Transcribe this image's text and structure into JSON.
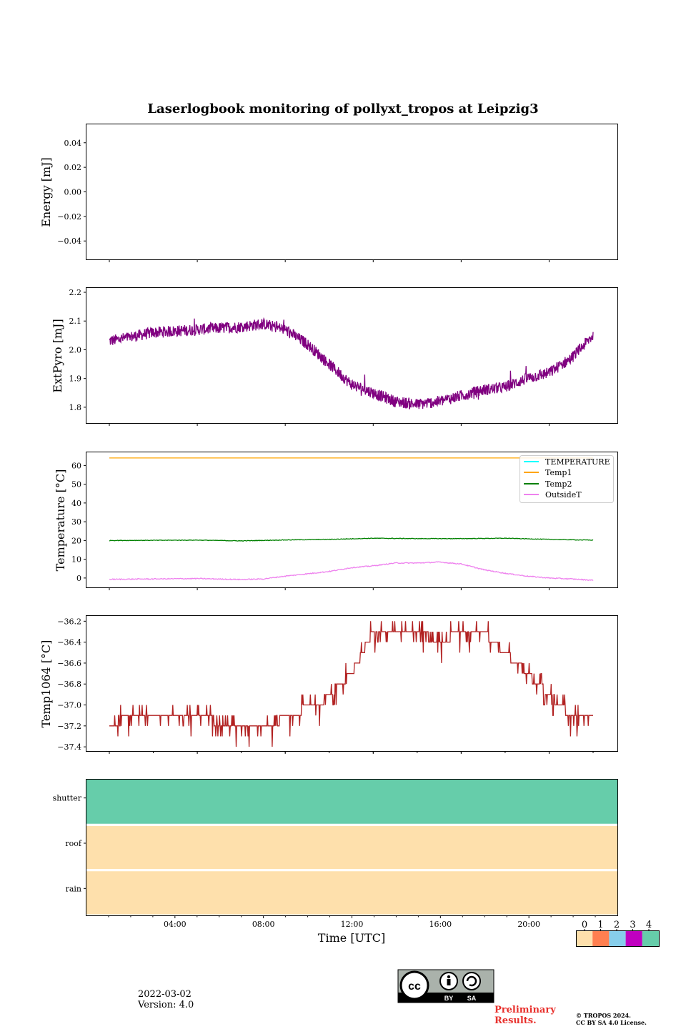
{
  "footer": {
    "date": "2022-03-02",
    "version": "Version: 4.0",
    "preliminary_line1": "Preliminary",
    "preliminary_line2": "Results.",
    "copyright_line1": "© TROPOS 2024.",
    "copyright_line2": "CC BY SA 4.0 License.",
    "license_badge": {
      "by": "BY",
      "sa": "SA",
      "cc": "cc"
    }
  },
  "colors": {
    "extpyro": "#800080",
    "temperature": "#00ffff",
    "temp1": "#ffa500",
    "temp2": "#008000",
    "outsideT": "#ee82ee",
    "temp1064": "#b22222",
    "status": [
      "#fee0ac",
      "#ff7f50",
      "#87ceeb",
      "#c000c0",
      "#66cdaa"
    ]
  },
  "chart_data": [
    {
      "type": "line",
      "title": "Laserlogbook monitoring of pollyxt_tropos at Leipzig3",
      "ylabel": "Energy [mJ]",
      "ylim": [
        -0.055,
        0.055
      ],
      "yticks": [
        0.04,
        0.02,
        0.0,
        -0.02,
        -0.04
      ],
      "ytick_labels": [
        "0.04",
        "0.02",
        "0.00",
        "−0.02",
        "−0.04"
      ],
      "series": []
    },
    {
      "type": "line",
      "ylabel": "ExtPyro [mJ]",
      "ylim": [
        1.745,
        2.215
      ],
      "yticks": [
        2.2,
        2.1,
        2.0,
        1.9,
        1.8
      ],
      "ytick_labels": [
        "2.2",
        "2.1",
        "2.0",
        "1.9",
        "1.8"
      ],
      "series": [
        {
          "name": "ExtPyro",
          "x_hours": [
            0,
            2,
            4,
            6,
            7,
            8,
            9,
            11,
            13,
            14,
            15,
            16,
            17,
            18,
            19,
            20,
            21,
            22
          ],
          "values": [
            2.03,
            2.06,
            2.07,
            2.08,
            2.09,
            2.07,
            2.02,
            1.88,
            1.82,
            1.81,
            1.82,
            1.84,
            1.86,
            1.87,
            1.9,
            1.92,
            1.97,
            2.05
          ],
          "noise_amplitude": 0.02
        }
      ]
    },
    {
      "type": "line",
      "ylabel": "Temperature [°C]",
      "ylim": [
        -5,
        67
      ],
      "yticks": [
        60,
        50,
        40,
        30,
        20,
        10,
        0
      ],
      "ytick_labels": [
        "60",
        "50",
        "40",
        "30",
        "20",
        "10",
        "0"
      ],
      "legend": [
        "TEMPERATURE",
        "Temp1",
        "Temp2",
        "OutsideT"
      ],
      "legend_position": "top-right",
      "series": [
        {
          "name": "TEMPERATURE",
          "x_hours": [],
          "values": []
        },
        {
          "name": "Temp1",
          "x_hours": [
            0,
            22
          ],
          "values": [
            64,
            64
          ]
        },
        {
          "name": "Temp2",
          "x_hours": [
            0,
            4,
            6,
            8,
            10,
            12,
            14,
            16,
            18,
            20,
            22
          ],
          "values": [
            20,
            20.2,
            19.8,
            20.3,
            20.6,
            21.2,
            21,
            21,
            21.2,
            20.6,
            20.2
          ]
        },
        {
          "name": "OutsideT",
          "x_hours": [
            0,
            2,
            4,
            6,
            7,
            8,
            10,
            11,
            12,
            13,
            14,
            15,
            16,
            17,
            18,
            19,
            20,
            21,
            22
          ],
          "values": [
            -0.7,
            -0.5,
            -0.3,
            -0.8,
            -0.5,
            1,
            3.5,
            5.5,
            6.5,
            8,
            8,
            8.5,
            7.5,
            4.5,
            2.5,
            1,
            0,
            -0.5,
            -1.2
          ]
        }
      ]
    },
    {
      "type": "line",
      "ylabel": "Temp1064 [°C]",
      "ylim": [
        -37.44,
        -36.15
      ],
      "yticks": [
        -36.2,
        -36.4,
        -36.6,
        -36.8,
        -37.0,
        -37.2,
        -37.4
      ],
      "ytick_labels": [
        "−36.2",
        "−36.4",
        "−36.6",
        "−36.8",
        "−37.0",
        "−37.2",
        "−37.4"
      ],
      "series": [
        {
          "name": "Temp1064",
          "x_hours": [
            0,
            1,
            4,
            5.5,
            7.5,
            8,
            8.5,
            9,
            9.5,
            10,
            10.5,
            11,
            11.5,
            12,
            12.5,
            13,
            14,
            15,
            16,
            17,
            17.5,
            18,
            18.5,
            19,
            19.5,
            20,
            20.5,
            21,
            21.5,
            22
          ],
          "values": [
            -37.2,
            -37.1,
            -37.1,
            -37.2,
            -37.2,
            -37.1,
            -37.1,
            -37.0,
            -37.0,
            -36.9,
            -36.8,
            -36.7,
            -36.5,
            -36.3,
            -36.3,
            -36.3,
            -36.3,
            -36.4,
            -36.3,
            -36.3,
            -36.4,
            -36.5,
            -36.6,
            -36.7,
            -36.8,
            -36.9,
            -37.0,
            -37.1,
            -37.1,
            -37.1
          ],
          "spike_step": 0.1
        }
      ]
    },
    {
      "type": "heatmap",
      "xlabel": "Time [UTC]",
      "xlim_hours": [
        0,
        24
      ],
      "xticks": [
        "04:00",
        "08:00",
        "12:00",
        "16:00",
        "20:00"
      ],
      "rows": [
        {
          "label": "shutter",
          "status": 4
        },
        {
          "label": "roof",
          "status": 0
        },
        {
          "label": "rain",
          "status": 0
        }
      ],
      "colorbar": {
        "labels": [
          "0",
          "1",
          "2",
          "3",
          "4"
        ]
      }
    }
  ]
}
